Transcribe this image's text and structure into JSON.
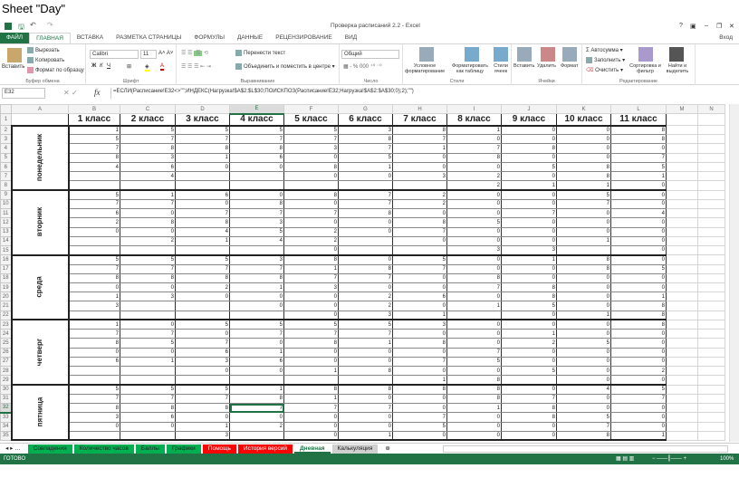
{
  "caption": "Sheet \"Day\"",
  "window": {
    "title": "Проверка расписаний 2.2 - Excel",
    "controls": [
      "?",
      "▣",
      "–",
      "❐",
      "✕"
    ],
    "signin": "Вход"
  },
  "ribbon_tabs": [
    "ФАЙЛ",
    "ГЛАВНАЯ",
    "ВСТАВКА",
    "РАЗМЕТКА СТРАНИЦЫ",
    "ФОРМУЛЫ",
    "ДАННЫЕ",
    "РЕЦЕНЗИРОВАНИЕ",
    "ВИД"
  ],
  "active_ribbon_tab": "ГЛАВНАЯ",
  "ribbon": {
    "clipboard": {
      "paste": "Вставить",
      "cut": "Вырезать",
      "copy": "Копировать",
      "format_painter": "Формат по образцу",
      "label": "Буфер обмена"
    },
    "font": {
      "name": "Calibri",
      "size": "11",
      "bold": "Ж",
      "italic": "К",
      "underline": "Ч",
      "label": "Шрифт"
    },
    "alignment": {
      "wrap": "Перенести текст",
      "merge": "Объединить и поместить в центре",
      "label": "Выравнивание"
    },
    "number": {
      "format": "Общий",
      "label": "Число"
    },
    "styles": {
      "conditional": "Условное форматирование",
      "as_table": "Форматировать как таблицу",
      "cell_styles": "Стили ячеек",
      "label": "Стили"
    },
    "cells": {
      "insert": "Вставить",
      "delete": "Удалить",
      "format": "Формат",
      "label": "Ячейки"
    },
    "editing": {
      "autosum": "Автосумма",
      "fill": "Заполнить",
      "clear": "Очистить",
      "sort": "Сортировка и фильтр",
      "find": "Найти и выделить",
      "label": "Редактирование"
    }
  },
  "formula_bar": {
    "name_box": "E32",
    "formula": "=ЕСЛИ(Расписание!E32<>\"\";ИНДЕКС(Нагрузка!$A$2:$L$30;ПОИСКПОЗ(Расписание!E32;Нагрузка!$A$2:$A$30;0);2);\"\")"
  },
  "columns": [
    "A",
    "B",
    "C",
    "D",
    "E",
    "F",
    "G",
    "H",
    "I",
    "J",
    "K",
    "L",
    "M",
    "N"
  ],
  "selected_cell": {
    "col": "E",
    "row": 32
  },
  "class_headers": [
    "1 класс",
    "2 класс",
    "3 класс",
    "4 класс",
    "5 класс",
    "6 класс",
    "7 класс",
    "8 класс",
    "9 класс",
    "10 класс",
    "11 класс"
  ],
  "days": [
    {
      "name": "понедельник",
      "rows": [
        [
          1,
          5,
          5,
          5,
          5,
          3,
          8,
          1,
          0,
          0,
          8
        ],
        [
          5,
          7,
          7,
          7,
          7,
          8,
          7,
          0,
          0,
          0,
          8
        ],
        [
          7,
          8,
          8,
          8,
          3,
          7,
          1,
          7,
          8,
          0,
          0
        ],
        [
          8,
          3,
          1,
          6,
          0,
          5,
          0,
          8,
          0,
          0,
          7
        ],
        [
          4,
          6,
          0,
          0,
          8,
          1,
          0,
          0,
          5,
          8,
          5
        ],
        [
          "",
          4,
          "",
          "",
          0,
          0,
          3,
          2,
          0,
          8,
          1
        ],
        [
          "",
          "",
          "",
          "",
          "",
          "",
          "",
          2,
          1,
          1,
          0
        ]
      ]
    },
    {
      "name": "вторник",
      "rows": [
        [
          5,
          1,
          6,
          0,
          8,
          7,
          2,
          0,
          0,
          5,
          0
        ],
        [
          7,
          7,
          0,
          8,
          0,
          7,
          2,
          0,
          0,
          7,
          0
        ],
        [
          6,
          0,
          7,
          7,
          7,
          8,
          0,
          0,
          7,
          0,
          4
        ],
        [
          2,
          8,
          8,
          3,
          0,
          0,
          8,
          5,
          0,
          0,
          0
        ],
        [
          0,
          0,
          4,
          5,
          2,
          0,
          7,
          0,
          0,
          0,
          0
        ],
        [
          "",
          2,
          1,
          4,
          2,
          "",
          0,
          0,
          0,
          1,
          0
        ],
        [
          "",
          "",
          "",
          "",
          0,
          "",
          "",
          3,
          3,
          "",
          0
        ]
      ]
    },
    {
      "name": "среда",
      "rows": [
        [
          5,
          5,
          5,
          3,
          8,
          0,
          5,
          0,
          1,
          8,
          0
        ],
        [
          7,
          7,
          7,
          7,
          1,
          8,
          7,
          0,
          0,
          8,
          5
        ],
        [
          8,
          8,
          8,
          8,
          7,
          7,
          0,
          8,
          0,
          0,
          0
        ],
        [
          0,
          0,
          2,
          1,
          3,
          0,
          0,
          7,
          8,
          0,
          0
        ],
        [
          1,
          3,
          0,
          0,
          0,
          2,
          6,
          0,
          8,
          0,
          1
        ],
        [
          3,
          "",
          "",
          0,
          0,
          2,
          0,
          1,
          5,
          0,
          8
        ],
        [
          "",
          "",
          "",
          "",
          0,
          3,
          1,
          "",
          0,
          1,
          8
        ]
      ]
    },
    {
      "name": "четверг",
      "rows": [
        [
          1,
          0,
          5,
          5,
          5,
          5,
          3,
          0,
          0,
          0,
          8
        ],
        [
          7,
          7,
          0,
          7,
          7,
          7,
          0,
          0,
          1,
          0,
          0
        ],
        [
          8,
          5,
          7,
          0,
          8,
          1,
          8,
          0,
          2,
          5,
          0
        ],
        [
          0,
          0,
          6,
          1,
          0,
          0,
          0,
          7,
          0,
          0,
          0
        ],
        [
          6,
          1,
          3,
          6,
          0,
          0,
          7,
          5,
          0,
          0,
          0
        ],
        [
          "",
          "",
          0,
          0,
          1,
          8,
          0,
          0,
          5,
          0,
          2
        ],
        [
          "",
          "",
          "",
          "",
          "",
          "",
          1,
          8,
          "",
          0,
          0
        ]
      ]
    },
    {
      "name": "пятница",
      "rows": [
        [
          5,
          5,
          5,
          1,
          8,
          8,
          8,
          8,
          0,
          4,
          5
        ],
        [
          7,
          7,
          7,
          8,
          1,
          0,
          0,
          8,
          7,
          0,
          7
        ],
        [
          8,
          8,
          8,
          7,
          7,
          7,
          0,
          1,
          8,
          0,
          0
        ],
        [
          3,
          6,
          0,
          0,
          0,
          0,
          7,
          0,
          8,
          5,
          0
        ],
        [
          0,
          0,
          1,
          2,
          0,
          0,
          5,
          0,
          0,
          7,
          0
        ],
        [
          "",
          "",
          3,
          "",
          0,
          1,
          0,
          0,
          0,
          8,
          1
        ]
      ]
    }
  ],
  "sheet_tabs": [
    {
      "label": "Совпадения",
      "color": "#00b050"
    },
    {
      "label": "Количество часов",
      "color": "#00b050"
    },
    {
      "label": "Баллы",
      "color": "#00b050"
    },
    {
      "label": "Графики",
      "color": "#00b050"
    },
    {
      "label": "Помощь",
      "color": "#ff0000"
    },
    {
      "label": "История версий",
      "color": "#ff0000"
    },
    {
      "label": "Дневная",
      "color": "#ffffff",
      "active": true
    },
    {
      "label": "Калькуляция",
      "color": "#d0d0d0"
    }
  ],
  "status": {
    "text": "ГОТОВО",
    "zoom": "100%"
  },
  "accent": "#217346"
}
